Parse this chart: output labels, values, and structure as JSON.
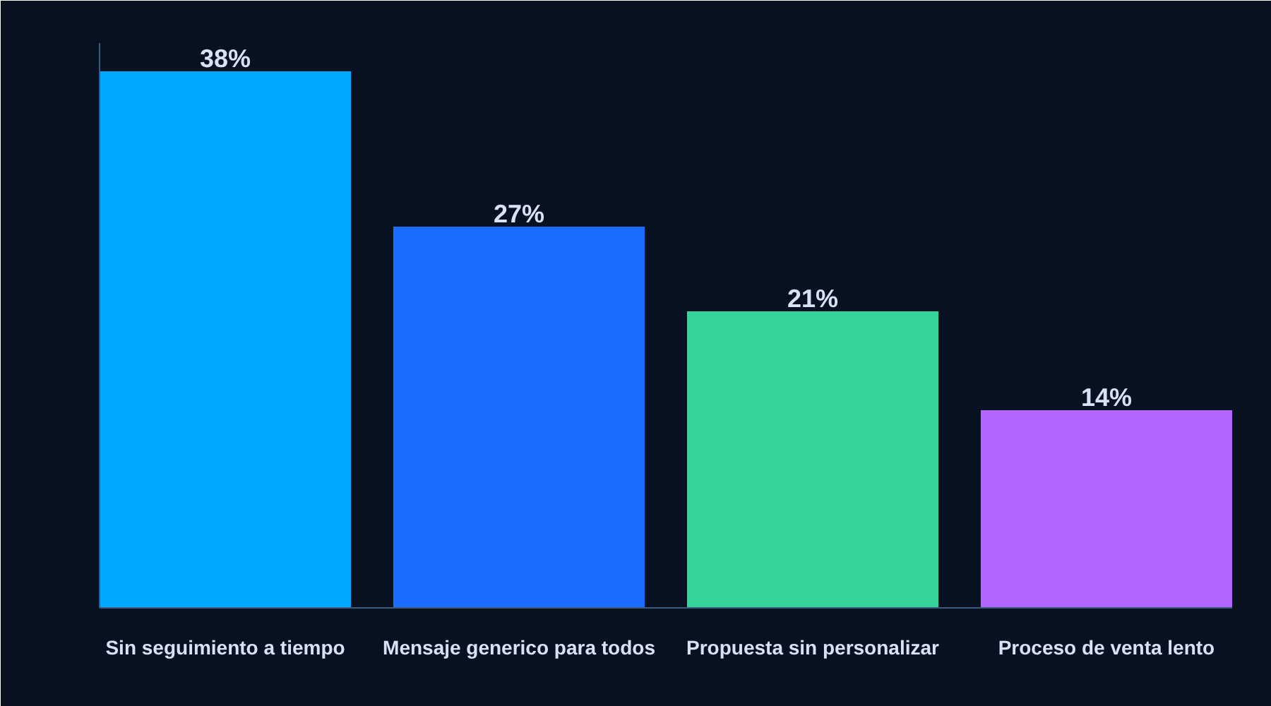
{
  "chart_data": {
    "type": "bar",
    "categories": [
      "Sin seguimiento a tiempo",
      "Mensaje generico para todos",
      "Propuesta sin personalizar",
      "Proceso de venta lento"
    ],
    "values": [
      38,
      27,
      21,
      14
    ],
    "colors": [
      "#00a8ff",
      "#1a6dff",
      "#34d399",
      "#b366ff"
    ],
    "value_labels": [
      "38%",
      "27%",
      "21%",
      "14%"
    ],
    "ylim": [
      0,
      40
    ],
    "tick_labels": "x"
  }
}
